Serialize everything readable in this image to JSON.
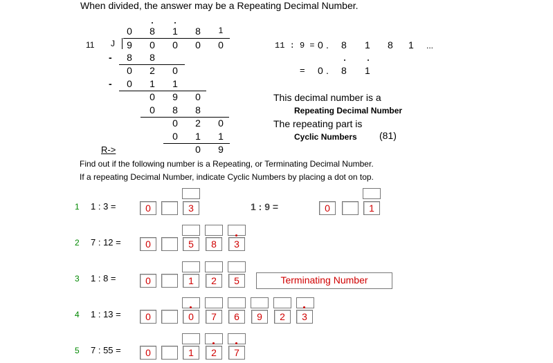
{
  "header": {
    "title": "When divided, the answer may be a Repeating Decimal Number."
  },
  "division": {
    "quotient": [
      "0",
      "8",
      "1",
      "8",
      "1"
    ],
    "divisor": "11",
    "bracket": "J",
    "dividend": [
      "9",
      "0",
      "0",
      "0",
      "0"
    ],
    "rows": [
      {
        "sign": "-",
        "digits": [
          "8",
          "8"
        ]
      },
      {
        "sign": "",
        "digits": [
          "0",
          "2",
          "0"
        ]
      },
      {
        "sign": "-",
        "digits": [
          "0",
          "1",
          "1"
        ]
      },
      {
        "sign": "",
        "digits": [
          "0",
          "9",
          "0"
        ]
      },
      {
        "sign": "",
        "digits": [
          "0",
          "8",
          "8"
        ]
      },
      {
        "sign": "",
        "digits": [
          "0",
          "2",
          "0"
        ]
      },
      {
        "sign": "",
        "digits": [
          "0",
          "1",
          "1"
        ]
      },
      {
        "sign": "",
        "digits": [
          "0",
          "9"
        ]
      }
    ],
    "remainder_label": "R->"
  },
  "equation": {
    "line1": "11 : 9 =",
    "line1_digits": [
      "0",
      ".",
      "8",
      "1",
      "8",
      "1",
      "..."
    ],
    "line2_eq": "=",
    "line2_digits": [
      "0",
      ".",
      "8",
      "1"
    ]
  },
  "explanation": {
    "line1": "This decimal number is a",
    "line2": "Repeating Decimal Number",
    "line3": "The repeating part is",
    "line4": "Cyclic Numbers",
    "line4_value": "(81)"
  },
  "instructions": {
    "line1": "Find out if the following number is a Repeating, or Terminating Decimal Number.",
    "line2": "If a repeating Decimal Number, indicate Cyclic Numbers by placing a dot on top."
  },
  "example": {
    "label": "1 : 9 =",
    "answer": [
      "0",
      "",
      "1"
    ]
  },
  "problems": [
    {
      "number": "1",
      "expr": "1 : 3 =",
      "answers": [
        "0",
        "",
        "3"
      ]
    },
    {
      "number": "2",
      "expr": "7 : 12 =",
      "answers": [
        "0",
        "",
        "5",
        "8",
        "3"
      ]
    },
    {
      "number": "3",
      "expr": "1 : 8 =",
      "answers": [
        "0",
        "",
        "1",
        "2",
        "5"
      ],
      "note": "Terminating Number"
    },
    {
      "number": "4",
      "expr": "1 : 13 =",
      "answers": [
        "0",
        "",
        "0",
        "7",
        "6",
        "9",
        "2",
        "3"
      ]
    },
    {
      "number": "5",
      "expr": "7 : 55 =",
      "answers": [
        "0",
        "",
        "1",
        "2",
        "7"
      ]
    }
  ],
  "colors": {
    "answer": "#d00000",
    "problem_number": "#008800"
  }
}
